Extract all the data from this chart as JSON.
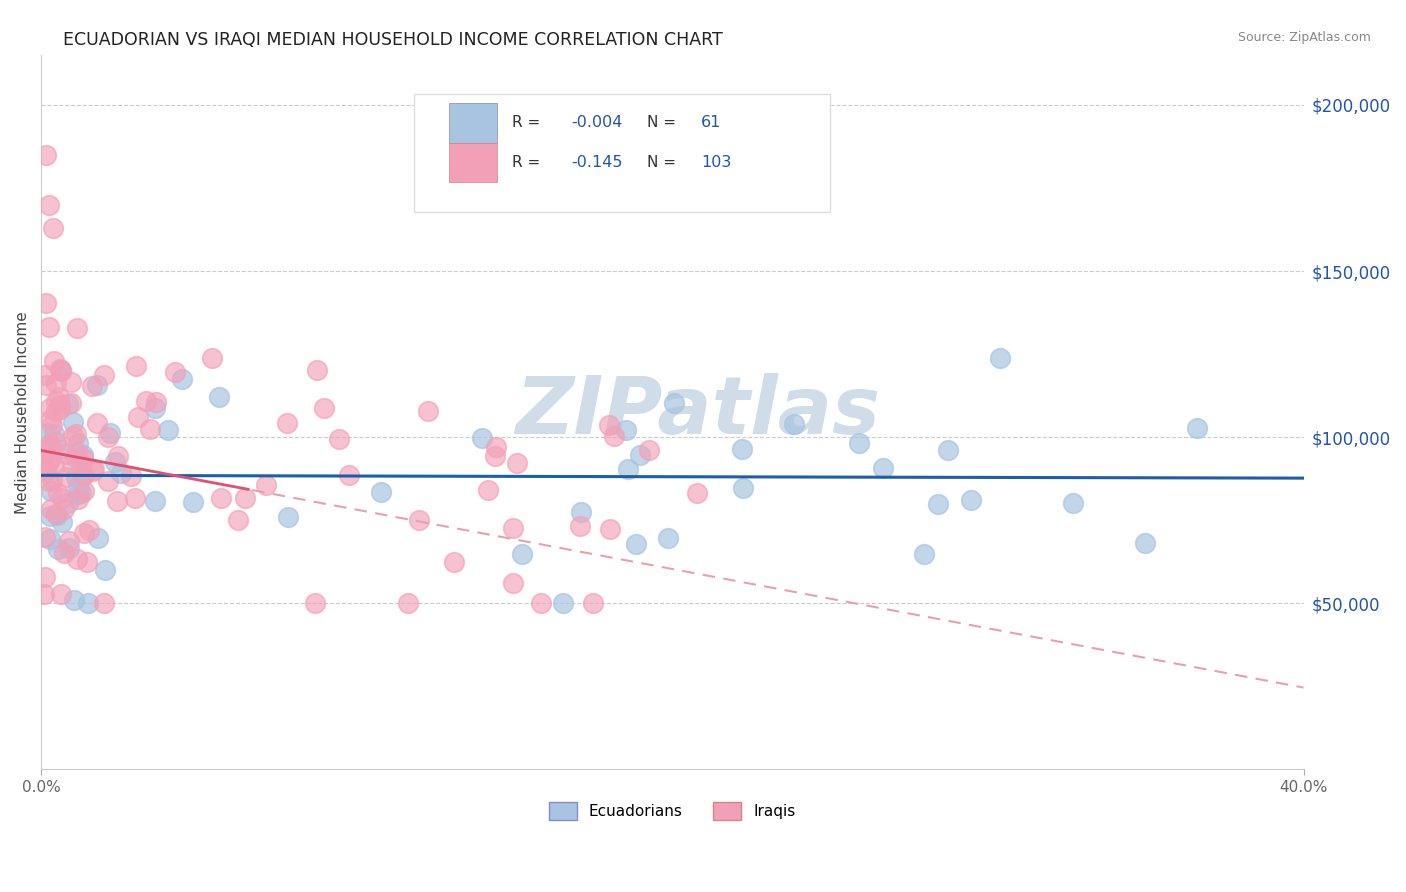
{
  "title": "ECUADORIAN VS IRAQI MEDIAN HOUSEHOLD INCOME CORRELATION CHART",
  "source": "Source: ZipAtlas.com",
  "ylabel": "Median Household Income",
  "ytick_vals": [
    0,
    50000,
    100000,
    150000,
    200000
  ],
  "ytick_labels": [
    "",
    "$50,000",
    "$100,000",
    "$150,000",
    "$200,000"
  ],
  "xlim": [
    0.0,
    42.0
  ],
  "ylim": [
    0,
    215000
  ],
  "ecuadorian_color": "#a8c4e0",
  "iraqi_color": "#f2a0b8",
  "trend_blue": "#1a5fa8",
  "trend_pink_solid": "#e05070",
  "trend_pink_dashed": "#e8a0b0",
  "background": "#ffffff",
  "grid_color": "#cccccc",
  "watermark_text": "ZIPatlas",
  "watermark_color": "#d0dde8",
  "r1": "-0.004",
  "n1": "61",
  "r2": "-0.145",
  "n2": "103",
  "legend_text_color": "#2255aa",
  "title_color": "#222222",
  "source_color": "#888888",
  "ylabel_color": "#444444",
  "ytick_color": "#2255aa",
  "xtick_color": "#666666"
}
